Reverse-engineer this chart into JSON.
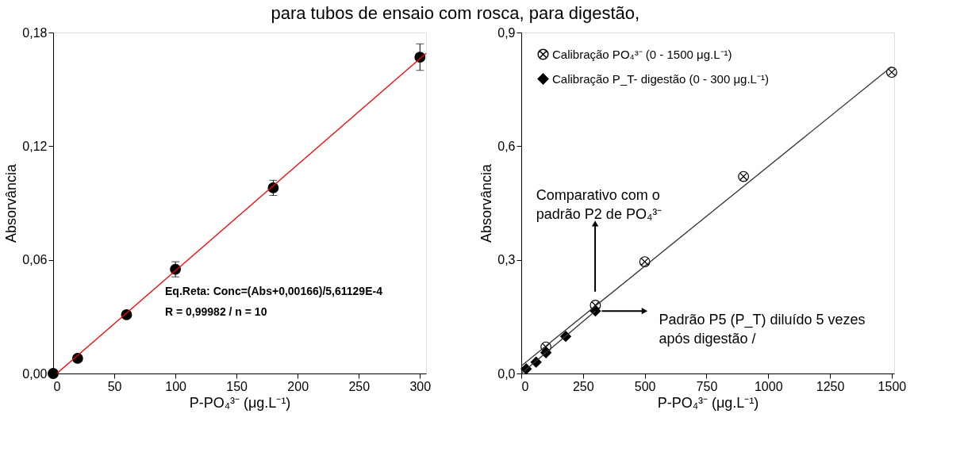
{
  "chart_data": [
    {
      "type": "scatter",
      "title": "para tubos de ensaio com rosca, para digestão,",
      "xlabel": "P-PO₄³⁻ (μg.L⁻¹)",
      "ylabel": "Absorvância",
      "xlim": [
        0,
        305
      ],
      "xticks": [
        0,
        50,
        100,
        150,
        200,
        250,
        300
      ],
      "ylim": [
        0,
        0.18
      ],
      "yticks": [
        {
          "value": 0,
          "label": "0,00"
        },
        {
          "value": 0.06,
          "label": "0,06"
        },
        {
          "value": 0.12,
          "label": "0,12"
        },
        {
          "value": 0.18,
          "label": "0,18"
        }
      ],
      "grid": false,
      "legend": false,
      "annotations": [
        "Eq.Reta: Conc=(Abs+0,00166)/5,61129E-4",
        "R = 0,99982 / n = 10"
      ],
      "series": [
        {
          "color": "#000000",
          "marker": "circle",
          "x": [
            0,
            20,
            60,
            100,
            180,
            300
          ],
          "values": [
            0,
            0.008,
            0.031,
            0.055,
            0.098,
            0.167
          ],
          "errors": [
            null,
            null,
            null,
            0.004,
            0.004,
            0.007
          ]
        },
        {
          "type": "line",
          "color": "#ff0000",
          "x": [
            3,
            305
          ],
          "values": [
            0,
            0.169
          ]
        }
      ]
    },
    {
      "type": "scatter",
      "xlabel": "P-PO₄³⁻ (μg.L⁻¹)",
      "ylabel": "Absorvância",
      "xlim": [
        0,
        1510
      ],
      "xticks": [
        0,
        250,
        500,
        750,
        1000,
        1250,
        1500
      ],
      "ylim": [
        0,
        0.9
      ],
      "yticks": [
        {
          "value": 0,
          "label": "0,0"
        },
        {
          "value": 0.3,
          "label": "0,3"
        },
        {
          "value": 0.6,
          "label": "0,6"
        },
        {
          "value": 0.9,
          "label": "0,9"
        }
      ],
      "grid": false,
      "legend": "top left",
      "annotations": [
        "Comparativo com o padrão P2 de PO₄³⁻",
        {
          "text": "Padrão P5 (P_T) diluído 5 vezes após digestão /",
          "x": 300,
          "y": 0.165
        }
      ],
      "series": [
        {
          "name": "Calibração PO₄³⁻ (0 - 1500 μg.L⁻¹)",
          "color": "#000000",
          "marker": "cross",
          "x": [
            100,
            300,
            500,
            900,
            1500
          ],
          "values": [
            0.07,
            0.18,
            0.295,
            0.52,
            0.795
          ]
        },
        {
          "name": "Calibração P_T- digestão (0 - 300 μg.L⁻¹)",
          "color": "#000000",
          "marker": "diamond",
          "x": [
            20,
            60,
            100,
            180,
            300
          ],
          "values": [
            0.012,
            0.03,
            0.055,
            0.098,
            0.165
          ]
        },
        {
          "type": "line",
          "color": "#333333",
          "x": [
            0,
            1500
          ],
          "values": [
            0.02,
            0.81
          ]
        },
        {
          "type": "line",
          "color": "#333333",
          "x": [
            0,
            300
          ],
          "values": [
            0,
            0.165
          ]
        }
      ]
    }
  ]
}
